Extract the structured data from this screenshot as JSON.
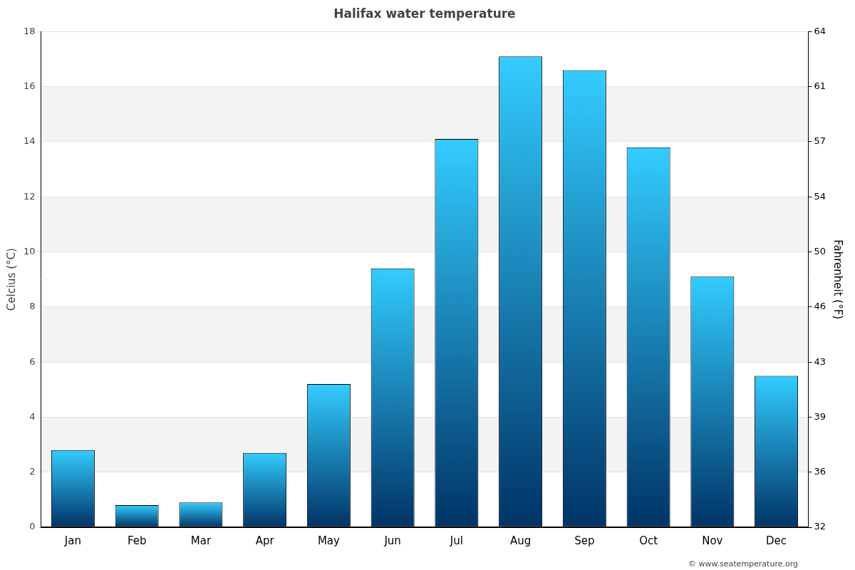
{
  "chart_data": {
    "type": "bar",
    "title": "Halifax water temperature",
    "ylabel": "Celcius (°C)",
    "y2label": "Fahrenheit (°F)",
    "annotations": [
      "© www.seatemperature.org"
    ],
    "categories": [
      "Jan",
      "Feb",
      "Mar",
      "Apr",
      "May",
      "Jun",
      "Jul",
      "Aug",
      "Sep",
      "Oct",
      "Nov",
      "Dec"
    ],
    "values": [
      2.8,
      0.8,
      0.9,
      2.7,
      5.2,
      9.4,
      14.1,
      17.1,
      16.6,
      13.8,
      9.1,
      5.5
    ],
    "color": "#33ccff",
    "ylim": [
      0,
      18
    ],
    "yticks": [
      0,
      2,
      4,
      6,
      8,
      10,
      12,
      14,
      16,
      18
    ],
    "y2lim": [
      32,
      64.4
    ],
    "y2ticks": [
      32,
      {
        "value": 35.6,
        "label": "36"
      },
      {
        "value": 39.2,
        "label": "39"
      },
      {
        "value": 42.8,
        "label": "43"
      },
      {
        "value": 46.4,
        "label": "46"
      },
      50,
      {
        "value": 53.6,
        "label": "54"
      },
      {
        "value": 57.2,
        "label": "57"
      },
      {
        "value": 60.8,
        "label": "61"
      },
      {
        "value": 64.4,
        "label": "64"
      }
    ],
    "grid": true
  }
}
